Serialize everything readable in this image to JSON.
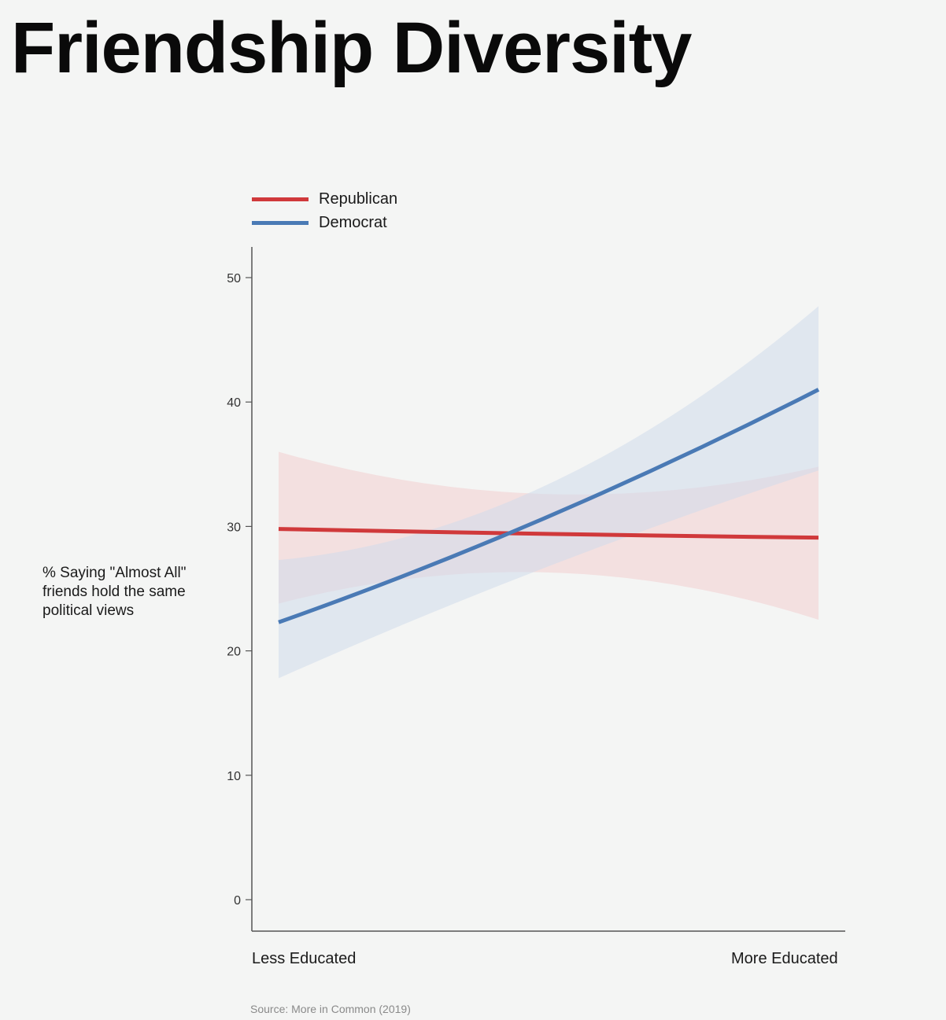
{
  "title": "Friendship Diversity",
  "source": "Source: More in Common (2019)",
  "colors": {
    "republican": "#d0393b",
    "democrat": "#4a7ab5",
    "republican_band": "#f2cdd0",
    "democrat_band": "#cfdbeb",
    "axis": "#555555",
    "background": "#f4f5f4"
  },
  "chart_data": {
    "type": "line",
    "title": "Friendship Diversity",
    "ylabel": "% Saying \"Almost All\" friends hold the same political views",
    "x_categories": [
      "Less Educated",
      "More Educated"
    ],
    "ylim": [
      -2.5,
      52.5
    ],
    "y_ticks": [
      0,
      10,
      20,
      30,
      40,
      50
    ],
    "grid": false,
    "legend_position": "top-left",
    "series": [
      {
        "name": "Republican",
        "color_key": "republican",
        "x": [
          0,
          0.5,
          1
        ],
        "y": [
          29.8,
          29.4,
          29.1
        ],
        "ci_lower": [
          23.8,
          26.3,
          22.5
        ],
        "ci_upper": [
          36.0,
          32.6,
          34.8
        ]
      },
      {
        "name": "Democrat",
        "color_key": "democrat",
        "x": [
          0,
          0.5,
          1
        ],
        "y": [
          22.3,
          30.8,
          41.0
        ],
        "ci_lower": [
          17.8,
          26.8,
          34.5
        ],
        "ci_upper": [
          27.3,
          33.4,
          47.7
        ]
      }
    ]
  }
}
